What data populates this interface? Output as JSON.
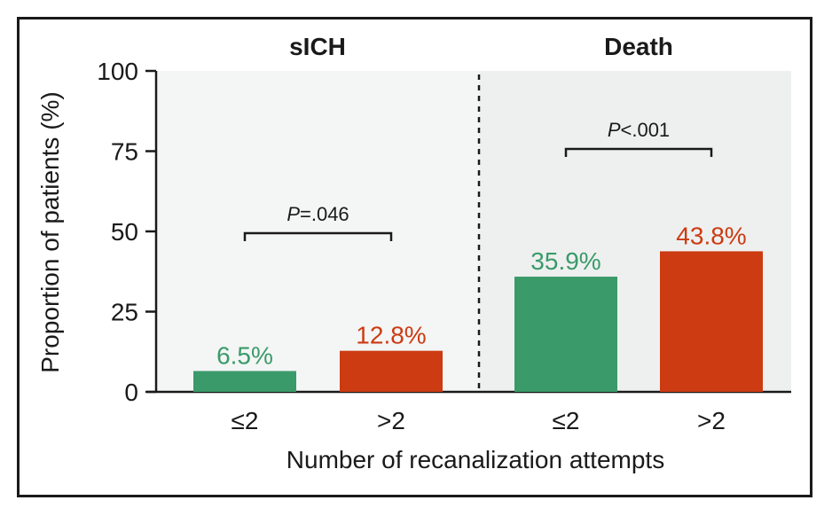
{
  "chart_data": {
    "type": "bar",
    "ylabel": "Proportion of patients (%)",
    "xlabel": "Number of recanalization attempts",
    "ylim": [
      0,
      100
    ],
    "yticks": [
      "0",
      "25",
      "50",
      "75",
      "100"
    ],
    "grid": false,
    "colors": {
      "le2": "#3a9a6a",
      "gt2": "#cc3b12",
      "panel_bg": "#f4f5f5"
    },
    "panels": [
      {
        "title": "sICH",
        "categories": [
          "≤2",
          ">2"
        ],
        "values": [
          6.5,
          12.8
        ],
        "value_labels": [
          "6.5%",
          "12.8%"
        ],
        "pvalue": {
          "p": "P",
          "rest": "=.046"
        }
      },
      {
        "title": "Death",
        "categories": [
          "≤2",
          ">2"
        ],
        "values": [
          35.9,
          43.8
        ],
        "value_labels": [
          "35.9%",
          "43.8%"
        ],
        "pvalue": {
          "p": "P",
          "rest": "<.001"
        }
      }
    ]
  }
}
